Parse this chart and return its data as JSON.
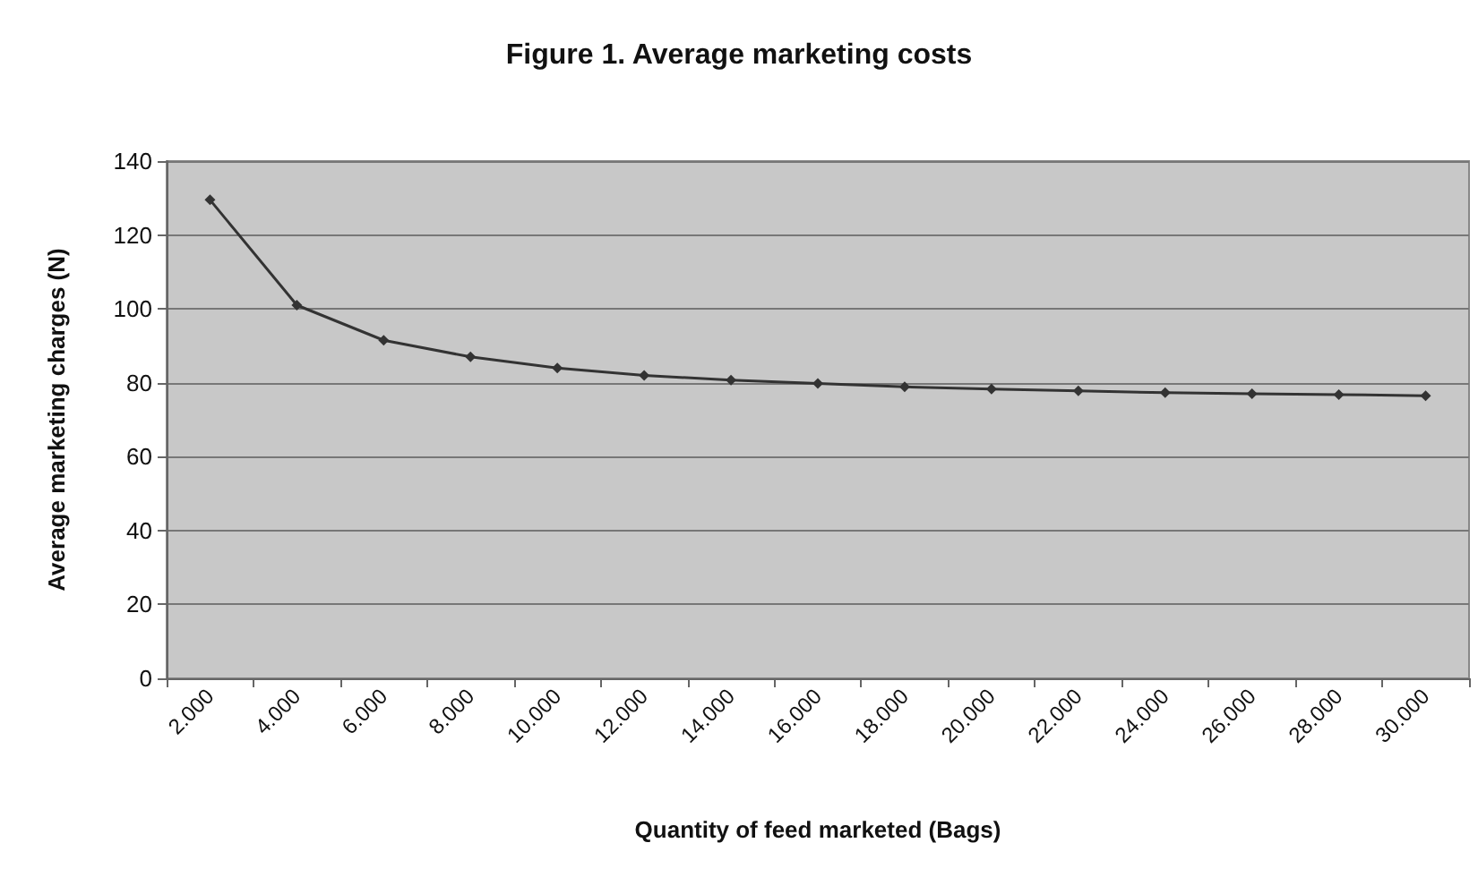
{
  "chart_data": {
    "type": "line",
    "title": "Figure 1. Average marketing costs",
    "xlabel": "Quantity of feed marketed (Bags)",
    "ylabel": "Average marketing charges (N)",
    "categories": [
      "2.000",
      "4.000",
      "6.000",
      "8.000",
      "10.000",
      "12.000",
      "14.000",
      "16.000",
      "18.000",
      "20.000",
      "22.000",
      "24.000",
      "26.000",
      "28.000",
      "30.000"
    ],
    "series": [
      {
        "color": "#333333",
        "values": [
          129.5,
          101,
          91.5,
          87,
          84,
          82,
          80.7,
          79.8,
          78.9,
          78.3,
          77.8,
          77.3,
          77,
          76.8,
          76.5
        ]
      }
    ],
    "ylim": [
      0,
      140
    ],
    "yticks": [
      0,
      20,
      40,
      60,
      80,
      100,
      120,
      140
    ],
    "grid": "y",
    "marker": "diamond",
    "line_style": "solid"
  }
}
